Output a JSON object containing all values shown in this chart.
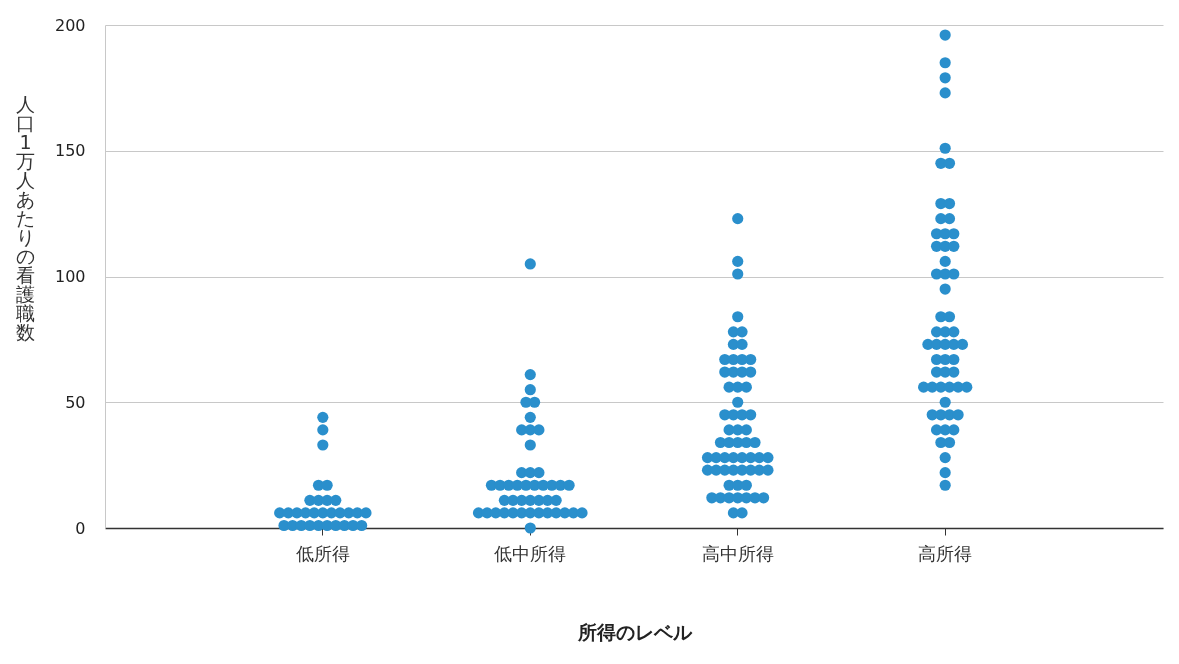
{
  "chart_data": {
    "type": "scatter",
    "xlabel": "所得のレベル",
    "ylabel": "人口1万人あたりの看護職数",
    "categories": [
      "低所得",
      "低中所得",
      "高中所得",
      "高所得"
    ],
    "ylim": [
      0,
      200
    ],
    "yticks": [
      0,
      50,
      100,
      150,
      200
    ],
    "grid": "y",
    "marker": "circle",
    "series": [
      {
        "color": "#2a8fcc",
        "x": [
          "低所得",
          "低所得",
          "低所得",
          "低所得",
          "低所得",
          "低所得",
          "低所得",
          "低所得",
          "低所得",
          "低所得",
          "低所得",
          "低所得",
          "低所得",
          "低所得",
          "低所得",
          "低所得",
          "低所得",
          "低所得",
          "低所得",
          "低所得",
          "低所得",
          "低所得",
          "低所得",
          "低所得",
          "低所得",
          "低所得",
          "低所得",
          "低所得",
          "低所得",
          "低所得",
          "低中所得",
          "低中所得",
          "低中所得",
          "低中所得",
          "低中所得",
          "低中所得",
          "低中所得",
          "低中所得",
          "低中所得",
          "低中所得",
          "低中所得",
          "低中所得",
          "低中所得",
          "低中所得",
          "低中所得",
          "低中所得",
          "低中所得",
          "低中所得",
          "低中所得",
          "低中所得",
          "低中所得",
          "低中所得",
          "低中所得",
          "低中所得",
          "低中所得",
          "低中所得",
          "低中所得",
          "低中所得",
          "低中所得",
          "低中所得",
          "低中所得",
          "低中所得",
          "低中所得",
          "低中所得",
          "低中所得",
          "低中所得",
          "低中所得",
          "低中所得",
          "低中所得",
          "低中所得",
          "低中所得",
          "低中所得",
          "低中所得",
          "低中所得",
          "高中所得",
          "高中所得",
          "高中所得",
          "高中所得",
          "高中所得",
          "高中所得",
          "高中所得",
          "高中所得",
          "高中所得",
          "高中所得",
          "高中所得",
          "高中所得",
          "高中所得",
          "高中所得",
          "高中所得",
          "高中所得",
          "高中所得",
          "高中所得",
          "高中所得",
          "高中所得",
          "高中所得",
          "高中所得",
          "高中所得",
          "高中所得",
          "高中所得",
          "高中所得",
          "高中所得",
          "高中所得",
          "高中所得",
          "高中所得",
          "高中所得",
          "高中所得",
          "高中所得",
          "高中所得",
          "高中所得",
          "高中所得",
          "高中所得",
          "高中所得",
          "高中所得",
          "高中所得",
          "高中所得",
          "高中所得",
          "高中所得",
          "高中所得",
          "高中所得",
          "高中所得",
          "高中所得",
          "高中所得",
          "高中所得",
          "高中所得",
          "高中所得",
          "高中所得",
          "高中所得",
          "高中所得",
          "高中所得",
          "高中所得",
          "高中所得",
          "高中所得",
          "高中所得",
          "高中所得",
          "高所得",
          "高所得",
          "高所得",
          "高所得",
          "高所得",
          "高所得",
          "高所得",
          "高所得",
          "高所得",
          "高所得",
          "高所得",
          "高所得",
          "高所得",
          "高所得",
          "高所得",
          "高所得",
          "高所得",
          "高所得",
          "高所得",
          "高所得",
          "高所得",
          "高所得",
          "高所得",
          "高所得",
          "高所得",
          "高所得",
          "高所得",
          "高所得",
          "高所得",
          "高所得",
          "高所得",
          "高所得",
          "高所得",
          "高所得",
          "高所得",
          "高所得",
          "高所得",
          "高所得",
          "高所得",
          "高所得",
          "高所得",
          "高所得",
          "高所得",
          "高所得",
          "高所得",
          "高所得",
          "高所得",
          "高所得",
          "高所得",
          "高所得",
          "高所得",
          "高所得",
          "高所得",
          "高所得",
          "高所得",
          "高所得",
          "高所得"
        ],
        "values": [
          44,
          39,
          33,
          17,
          17,
          11,
          11,
          11,
          11,
          6,
          6,
          6,
          6,
          6,
          6,
          6,
          6,
          6,
          6,
          6,
          1,
          1,
          1,
          1,
          1,
          1,
          1,
          1,
          1,
          1,
          105,
          61,
          55,
          50,
          50,
          44,
          39,
          39,
          39,
          33,
          22,
          22,
          22,
          17,
          17,
          17,
          17,
          17,
          17,
          17,
          17,
          17,
          17,
          11,
          11,
          11,
          11,
          11,
          11,
          11,
          6,
          6,
          6,
          6,
          6,
          6,
          6,
          6,
          6,
          6,
          6,
          6,
          6,
          0,
          123,
          106,
          101,
          84,
          78,
          78,
          73,
          73,
          67,
          67,
          67,
          67,
          62,
          62,
          62,
          62,
          56,
          56,
          56,
          50,
          45,
          45,
          45,
          45,
          39,
          39,
          39,
          34,
          34,
          34,
          34,
          34,
          28,
          28,
          28,
          28,
          28,
          28,
          28,
          28,
          23,
          23,
          23,
          23,
          23,
          23,
          23,
          23,
          17,
          17,
          17,
          12,
          12,
          12,
          12,
          12,
          12,
          12,
          6,
          6,
          196,
          185,
          179,
          173,
          151,
          145,
          145,
          129,
          129,
          123,
          123,
          117,
          117,
          117,
          112,
          112,
          112,
          106,
          101,
          101,
          101,
          95,
          84,
          84,
          78,
          78,
          78,
          73,
          73,
          73,
          73,
          73,
          67,
          67,
          67,
          62,
          62,
          62,
          56,
          56,
          56,
          56,
          56,
          56,
          50,
          45,
          45,
          45,
          45,
          39,
          39,
          39,
          34,
          34,
          28,
          22,
          17
        ]
      }
    ]
  }
}
